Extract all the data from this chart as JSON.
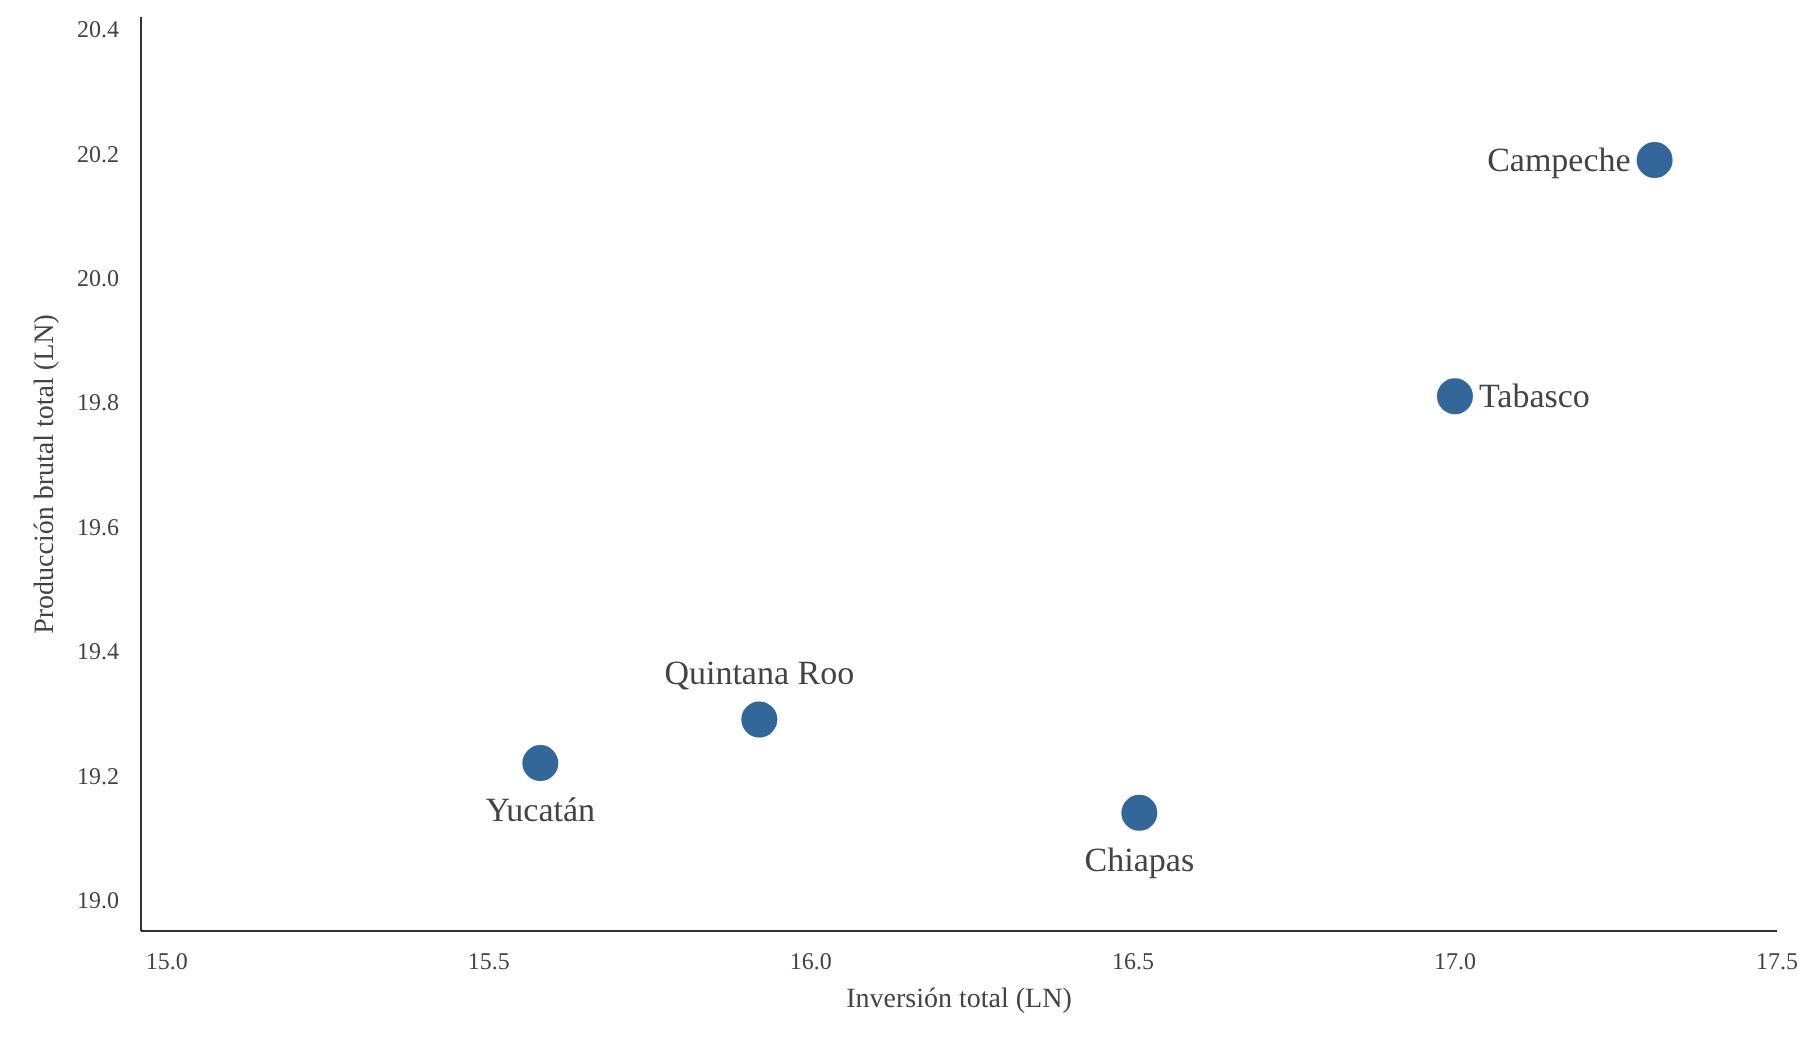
{
  "chart_data": {
    "type": "scatter",
    "xlabel": "Inversión total (LN)",
    "ylabel": "Producción brutal total (LN)",
    "x": [
      17.31,
      17.0,
      15.92,
      15.58,
      16.51
    ],
    "values": [
      20.19,
      19.81,
      19.29,
      19.22,
      19.14
    ],
    "color": "#336699",
    "marker": "circle",
    "grid": false,
    "xlim": [
      14.96,
      17.5
    ],
    "ylim": [
      18.95,
      20.42
    ],
    "xticks": [
      {
        "value": 15.0,
        "label": "15.0"
      },
      {
        "value": 15.5,
        "label": "15.5"
      },
      {
        "value": 16.0,
        "label": "16.0"
      },
      {
        "value": 16.5,
        "label": "16.5"
      },
      {
        "value": 17.0,
        "label": "17.0"
      },
      {
        "value": 17.5,
        "label": "17.5"
      }
    ],
    "yticks": [
      {
        "value": 19.0,
        "label": "19.0"
      },
      {
        "value": 19.2,
        "label": "19.2"
      },
      {
        "value": 19.4,
        "label": "19.4"
      },
      {
        "value": 19.6,
        "label": "19.6"
      },
      {
        "value": 19.8,
        "label": "19.8"
      },
      {
        "value": 20.0,
        "label": "20.0"
      },
      {
        "value": 20.2,
        "label": "20.2"
      },
      {
        "value": 20.4,
        "label": "20.4"
      }
    ],
    "annotations": [
      {
        "text": "Campeche",
        "x": 17.31,
        "y": 20.19
      },
      {
        "text": "Tabasco",
        "x": 17.0,
        "y": 19.81
      },
      {
        "text": "Quintana Roo",
        "x": 15.92,
        "y": 19.29
      },
      {
        "text": "Yucatán",
        "x": 15.58,
        "y": 19.22
      },
      {
        "text": "Chiapas",
        "x": 16.51,
        "y": 19.14
      }
    ]
  }
}
